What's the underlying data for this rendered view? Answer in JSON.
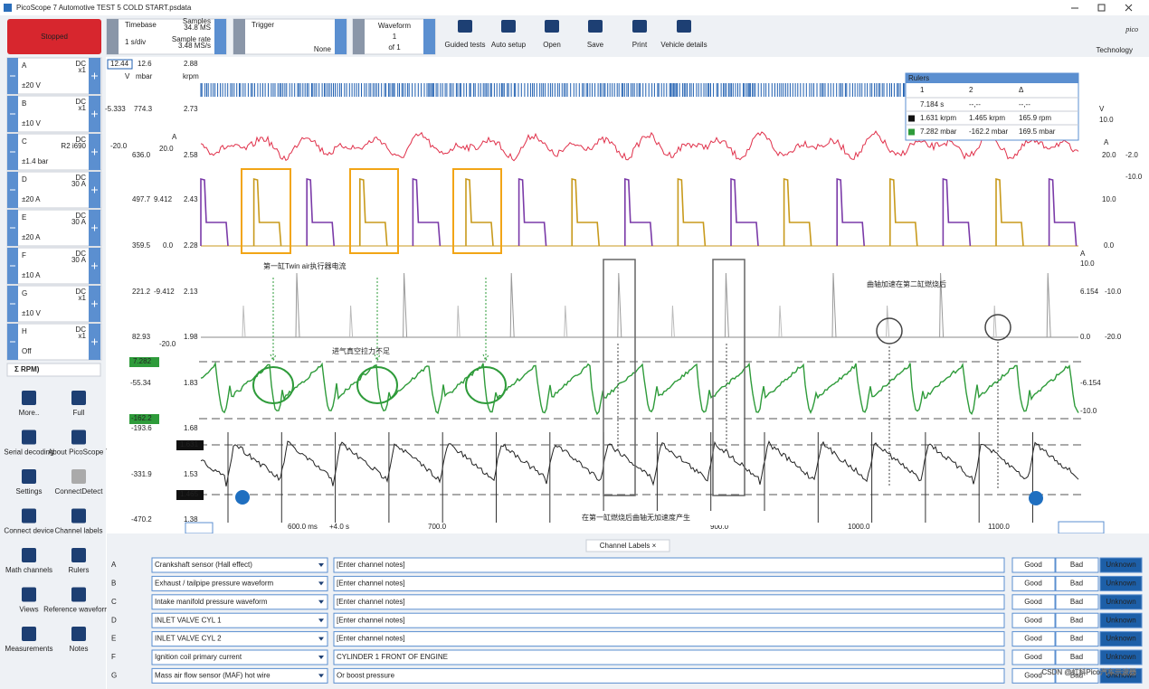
{
  "title_bar": {
    "title": "PicoScope 7 Automotive TEST 5 COLD START.psdata"
  },
  "toolbar": {
    "status": "Stopped",
    "timebase": {
      "label": "Timebase",
      "value": "1 s/div",
      "samples_label": "Samples",
      "samples": "34.8 MS",
      "rate_label": "Sample rate",
      "rate": "3.48 MS/s"
    },
    "trigger": {
      "label": "Trigger",
      "mode": "None"
    },
    "waveform": {
      "label": "Waveform",
      "current": "1",
      "total": "of 1"
    },
    "buttons": [
      "Guided tests",
      "Auto setup",
      "Open",
      "Save",
      "Print",
      "Vehicle details"
    ],
    "logo": "pico",
    "logo_sub": "Technology"
  },
  "channels": [
    {
      "letter": "A",
      "range": "±20 V",
      "coupling": "DC",
      "probe": "x1"
    },
    {
      "letter": "B",
      "range": "±10 V",
      "coupling": "DC",
      "probe": "x1"
    },
    {
      "letter": "C",
      "range": "±1.4 bar",
      "coupling": "DC",
      "probe": "R2 i690"
    },
    {
      "letter": "D",
      "range": "±20 A",
      "coupling": "DC",
      "probe": "30 A"
    },
    {
      "letter": "E",
      "range": "±20 A",
      "coupling": "DC",
      "probe": "30 A"
    },
    {
      "letter": "F",
      "range": "±10 A",
      "coupling": "DC",
      "probe": "30 A"
    },
    {
      "letter": "G",
      "range": "±10 V",
      "coupling": "DC",
      "probe": "x1"
    },
    {
      "letter": "H",
      "range": "Off",
      "coupling": "DC",
      "probe": "x1"
    }
  ],
  "math_channel": "Σ RPM)",
  "tools": [
    "More..",
    "Full",
    "Serial decoding",
    "About PicoScope 7",
    "Settings",
    "ConnectDetect",
    "Connect device",
    "Channel labels",
    "Math channels",
    "Rulers",
    "Views",
    "Reference waveforms",
    "Measurements",
    "Notes"
  ],
  "axes": {
    "left": [
      "12.44",
      "12.6",
      "2.88",
      "V",
      "mbar",
      "krpm",
      "-5.333",
      "774.3",
      "2.73",
      "A",
      "-20.0",
      "20.0",
      "636.0",
      "2.58",
      "497.7",
      "9.412",
      "2.43",
      "359.5",
      "0.0",
      "2.28",
      "221.2",
      "-9.412",
      "2.13",
      "82.93",
      "-20.0",
      "1.98",
      "7.282",
      "-55.34",
      "1.83",
      "-162.2",
      "-193.6",
      "1.68",
      "1.631",
      "-331.9",
      "1.53",
      "1.465",
      "-470.2",
      "1.38"
    ],
    "right": [
      "V",
      "10.0",
      "A",
      "20.0",
      "-2.0",
      "-10.0",
      "10.0",
      "0.0",
      "A",
      "10.0",
      "6.154",
      "-10.0",
      "0.0",
      "-20.0",
      "-6.154",
      "-10.0"
    ],
    "x": [
      "600.0 ms",
      "+4.0 s",
      "700.0",
      "900.0",
      "1000.0",
      "1100.0"
    ]
  },
  "annotations": [
    "第一缸Twin air执行器电流",
    "进气真空拉力不足",
    "曲轴加速在第二缸燃烧后",
    "在第一缸燃烧后曲轴无加速度产生"
  ],
  "rulers": {
    "title": "Rulers",
    "columns": [
      "1",
      "2",
      "Δ"
    ],
    "rows": [
      [
        "7.184 s",
        "--,--",
        "--,--"
      ],
      [
        "1.631 krpm",
        "1.465 krpm",
        "165.9 rpm"
      ],
      [
        "7.282 mbar",
        "-162.2 mbar",
        "169.5 mbar"
      ]
    ]
  },
  "channel_labels": {
    "tab": "Channel Labels ×",
    "buttons": [
      "Good",
      "Bad",
      "Unknown"
    ],
    "rows": [
      {
        "letter": "A",
        "name": "Crankshaft sensor (Hall effect)",
        "notes": "[Enter channel notes]"
      },
      {
        "letter": "B",
        "name": "Exhaust / tailpipe pressure waveform",
        "notes": "[Enter channel notes]"
      },
      {
        "letter": "C",
        "name": "Intake manifold pressure waveform",
        "notes": "[Enter channel notes]"
      },
      {
        "letter": "D",
        "name": "INLET VALVE CYL 1",
        "notes": "[Enter channel notes]"
      },
      {
        "letter": "E",
        "name": "INLET VALVE CYL 2",
        "notes": "[Enter channel notes]"
      },
      {
        "letter": "F",
        "name": "Ignition coil primary current",
        "notes": "CYLINDER 1 FRONT OF ENGINE"
      },
      {
        "letter": "G",
        "name": "Mass air flow sensor (MAF) hot wire",
        "notes": "Or boost pressure"
      }
    ]
  },
  "watermark": "CSDN @虹科Pico汽车示波器"
}
